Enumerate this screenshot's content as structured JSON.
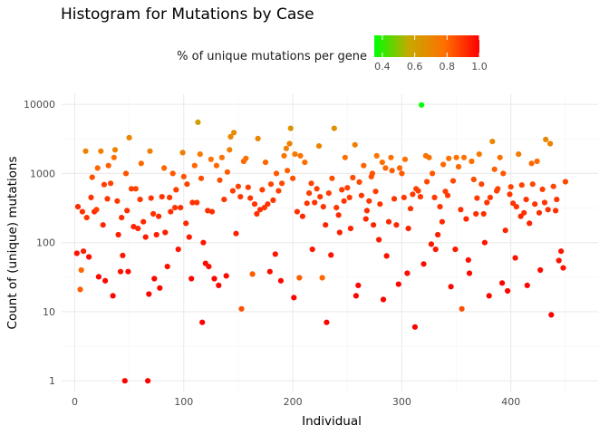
{
  "chart_data": {
    "type": "scatter",
    "title": "Histogram for Mutations by Case",
    "xlabel": "Individual",
    "ylabel": "Count of (unique) mutations",
    "xlim": [
      -12,
      480
    ],
    "x_ticks": [
      0,
      100,
      200,
      300,
      400
    ],
    "y_scale": "log10",
    "ylim": [
      0.7,
      14000
    ],
    "y_ticks": [
      1,
      10,
      100,
      1000,
      10000
    ],
    "grid": true,
    "legend": {
      "title": "% of unique mutations per gene",
      "placement": "top",
      "range": [
        0.35,
        1.0
      ],
      "ticks": [
        "0.4",
        "0.6",
        "0.8",
        "1.0"
      ],
      "colors": [
        "#00ff00",
        "#c8a800",
        "#ff7000",
        "#ff0000"
      ]
    },
    "points": [
      [
        2,
        70,
        0.97
      ],
      [
        3,
        330,
        0.92
      ],
      [
        5,
        21,
        0.82
      ],
      [
        6,
        40,
        0.8
      ],
      [
        7,
        280,
        0.9
      ],
      [
        8,
        75,
        0.95
      ],
      [
        10,
        2100,
        0.72
      ],
      [
        11,
        230,
        0.9
      ],
      [
        13,
        62,
        0.98
      ],
      [
        15,
        450,
        0.9
      ],
      [
        16,
        880,
        0.85
      ],
      [
        18,
        280,
        0.92
      ],
      [
        20,
        300,
        0.88
      ],
      [
        21,
        1200,
        0.8
      ],
      [
        22,
        32,
        0.99
      ],
      [
        24,
        2100,
        0.72
      ],
      [
        26,
        180,
        0.93
      ],
      [
        27,
        690,
        0.88
      ],
      [
        28,
        28,
        0.99
      ],
      [
        30,
        430,
        0.9
      ],
      [
        31,
        1300,
        0.82
      ],
      [
        33,
        720,
        0.87
      ],
      [
        35,
        17,
        0.99
      ],
      [
        36,
        1700,
        0.78
      ],
      [
        37,
        2200,
        0.72
      ],
      [
        39,
        400,
        0.9
      ],
      [
        40,
        130,
        0.94
      ],
      [
        42,
        38,
        0.97
      ],
      [
        43,
        230,
        0.92
      ],
      [
        44,
        65,
        0.96
      ],
      [
        46,
        1,
        1.0
      ],
      [
        47,
        1000,
        0.84
      ],
      [
        48,
        290,
        0.91
      ],
      [
        49,
        38,
        0.98
      ],
      [
        50,
        3300,
        0.7
      ],
      [
        52,
        600,
        0.88
      ],
      [
        54,
        170,
        0.93
      ],
      [
        56,
        600,
        0.87
      ],
      [
        58,
        160,
        0.93
      ],
      [
        60,
        420,
        0.9
      ],
      [
        61,
        1400,
        0.8
      ],
      [
        63,
        200,
        0.92
      ],
      [
        65,
        120,
        0.95
      ],
      [
        67,
        1,
        1.0
      ],
      [
        68,
        18,
        0.99
      ],
      [
        69,
        2100,
        0.72
      ],
      [
        70,
        440,
        0.9
      ],
      [
        72,
        260,
        0.91
      ],
      [
        73,
        30,
        0.99
      ],
      [
        75,
        130,
        0.94
      ],
      [
        77,
        240,
        0.92
      ],
      [
        78,
        22,
        0.99
      ],
      [
        80,
        460,
        0.9
      ],
      [
        82,
        1200,
        0.8
      ],
      [
        83,
        140,
        0.94
      ],
      [
        85,
        45,
        0.97
      ],
      [
        87,
        450,
        0.89
      ],
      [
        88,
        280,
        0.91
      ],
      [
        90,
        1000,
        0.83
      ],
      [
        92,
        320,
        0.9
      ],
      [
        93,
        580,
        0.88
      ],
      [
        95,
        80,
        0.96
      ],
      [
        97,
        320,
        0.91
      ],
      [
        99,
        2000,
        0.73
      ],
      [
        100,
        900,
        0.84
      ],
      [
        102,
        190,
        0.92
      ],
      [
        103,
        700,
        0.87
      ],
      [
        105,
        120,
        0.95
      ],
      [
        107,
        30,
        0.99
      ],
      [
        108,
        380,
        0.9
      ],
      [
        110,
        1300,
        0.8
      ],
      [
        112,
        380,
        0.9
      ],
      [
        113,
        5500,
        0.6
      ],
      [
        115,
        1900,
        0.75
      ],
      [
        116,
        850,
        0.85
      ],
      [
        117,
        7,
        1.0
      ],
      [
        118,
        100,
        0.96
      ],
      [
        120,
        50,
        0.98
      ],
      [
        122,
        290,
        0.91
      ],
      [
        123,
        45,
        0.97
      ],
      [
        125,
        1600,
        0.78
      ],
      [
        126,
        280,
        0.91
      ],
      [
        128,
        30,
        0.99
      ],
      [
        130,
        1300,
        0.8
      ],
      [
        132,
        24,
        0.99
      ],
      [
        133,
        800,
        0.85
      ],
      [
        135,
        1700,
        0.78
      ],
      [
        137,
        420,
        0.9
      ],
      [
        139,
        33,
        0.98
      ],
      [
        140,
        1050,
        0.82
      ],
      [
        142,
        2200,
        0.72
      ],
      [
        143,
        3400,
        0.7
      ],
      [
        145,
        560,
        0.88
      ],
      [
        146,
        3900,
        0.68
      ],
      [
        148,
        135,
        0.94
      ],
      [
        150,
        650,
        0.87
      ],
      [
        152,
        460,
        0.89
      ],
      [
        153,
        11,
        0.85
      ],
      [
        155,
        1500,
        0.8
      ],
      [
        157,
        1650,
        0.78
      ],
      [
        159,
        630,
        0.88
      ],
      [
        161,
        440,
        0.9
      ],
      [
        163,
        35,
        0.82
      ],
      [
        165,
        360,
        0.9
      ],
      [
        167,
        260,
        0.91
      ],
      [
        168,
        3200,
        0.7
      ],
      [
        170,
        300,
        0.91
      ],
      [
        172,
        580,
        0.88
      ],
      [
        174,
        320,
        0.9
      ],
      [
        175,
        1450,
        0.8
      ],
      [
        177,
        360,
        0.9
      ],
      [
        179,
        38,
        0.98
      ],
      [
        180,
        700,
        0.87
      ],
      [
        182,
        410,
        0.9
      ],
      [
        184,
        68,
        0.96
      ],
      [
        185,
        1000,
        0.83
      ],
      [
        187,
        560,
        0.88
      ],
      [
        189,
        28,
        0.99
      ],
      [
        190,
        720,
        0.86
      ],
      [
        192,
        1800,
        0.76
      ],
      [
        194,
        2300,
        0.72
      ],
      [
        195,
        1100,
        0.82
      ],
      [
        197,
        2700,
        0.72
      ],
      [
        198,
        4500,
        0.65
      ],
      [
        200,
        850,
        0.85
      ],
      [
        201,
        16,
        0.99
      ],
      [
        202,
        1900,
        0.75
      ],
      [
        204,
        280,
        0.91
      ],
      [
        206,
        31,
        0.82
      ],
      [
        207,
        1800,
        0.77
      ],
      [
        209,
        240,
        0.92
      ],
      [
        211,
        1450,
        0.79
      ],
      [
        213,
        370,
        0.9
      ],
      [
        215,
        520,
        0.88
      ],
      [
        217,
        720,
        0.87
      ],
      [
        218,
        80,
        0.96
      ],
      [
        220,
        380,
        0.9
      ],
      [
        222,
        600,
        0.88
      ],
      [
        224,
        2500,
        0.72
      ],
      [
        225,
        460,
        0.89
      ],
      [
        227,
        31,
        0.8
      ],
      [
        228,
        330,
        0.9
      ],
      [
        230,
        180,
        0.93
      ],
      [
        231,
        7,
        1.0
      ],
      [
        233,
        520,
        0.88
      ],
      [
        235,
        66,
        0.97
      ],
      [
        236,
        850,
        0.85
      ],
      [
        238,
        4500,
        0.65
      ],
      [
        240,
        320,
        0.9
      ],
      [
        242,
        250,
        0.92
      ],
      [
        243,
        140,
        0.94
      ],
      [
        245,
        580,
        0.88
      ],
      [
        247,
        400,
        0.9
      ],
      [
        248,
        1700,
        0.78
      ],
      [
        250,
        620,
        0.87
      ],
      [
        252,
        450,
        0.89
      ],
      [
        253,
        160,
        0.93
      ],
      [
        255,
        870,
        0.85
      ],
      [
        257,
        2600,
        0.72
      ],
      [
        258,
        17,
        0.99
      ],
      [
        260,
        24,
        0.99
      ],
      [
        261,
        750,
        0.86
      ],
      [
        263,
        480,
        0.89
      ],
      [
        265,
        1300,
        0.81
      ],
      [
        267,
        220,
        0.92
      ],
      [
        268,
        290,
        0.91
      ],
      [
        270,
        400,
        0.9
      ],
      [
        272,
        900,
        0.84
      ],
      [
        273,
        1000,
        0.84
      ],
      [
        274,
        180,
        0.93
      ],
      [
        276,
        550,
        0.88
      ],
      [
        277,
        1800,
        0.77
      ],
      [
        279,
        110,
        0.95
      ],
      [
        280,
        360,
        0.9
      ],
      [
        282,
        1450,
        0.79
      ],
      [
        283,
        15,
        1.0
      ],
      [
        285,
        1200,
        0.8
      ],
      [
        286,
        64,
        0.97
      ],
      [
        288,
        200,
        0.92
      ],
      [
        290,
        1700,
        0.78
      ],
      [
        291,
        1100,
        0.82
      ],
      [
        293,
        430,
        0.9
      ],
      [
        295,
        180,
        0.93
      ],
      [
        297,
        25,
        0.99
      ],
      [
        298,
        1200,
        0.8
      ],
      [
        300,
        1000,
        0.83
      ],
      [
        302,
        450,
        0.89
      ],
      [
        303,
        1600,
        0.78
      ],
      [
        305,
        36,
        0.98
      ],
      [
        306,
        160,
        0.93
      ],
      [
        308,
        310,
        0.9
      ],
      [
        310,
        500,
        0.89
      ],
      [
        312,
        6,
        1.0
      ],
      [
        313,
        600,
        0.87
      ],
      [
        315,
        560,
        0.88
      ],
      [
        317,
        460,
        0.89
      ],
      [
        318,
        9800,
        0.35
      ],
      [
        320,
        49,
        0.98
      ],
      [
        322,
        1800,
        0.77
      ],
      [
        323,
        760,
        0.86
      ],
      [
        325,
        1700,
        0.78
      ],
      [
        327,
        95,
        0.96
      ],
      [
        328,
        1000,
        0.83
      ],
      [
        330,
        450,
        0.89
      ],
      [
        331,
        80,
        0.96
      ],
      [
        333,
        130,
        0.94
      ],
      [
        335,
        330,
        0.9
      ],
      [
        337,
        200,
        0.92
      ],
      [
        338,
        1350,
        0.8
      ],
      [
        340,
        550,
        0.88
      ],
      [
        342,
        480,
        0.89
      ],
      [
        343,
        1650,
        0.78
      ],
      [
        345,
        23,
        0.99
      ],
      [
        347,
        780,
        0.86
      ],
      [
        349,
        80,
        0.96
      ],
      [
        350,
        1700,
        0.78
      ],
      [
        352,
        1250,
        0.8
      ],
      [
        354,
        300,
        0.91
      ],
      [
        355,
        11,
        0.85
      ],
      [
        357,
        1700,
        0.78
      ],
      [
        359,
        220,
        0.92
      ],
      [
        361,
        56,
        0.97
      ],
      [
        362,
        36,
        0.98
      ],
      [
        364,
        1500,
        0.79
      ],
      [
        366,
        820,
        0.85
      ],
      [
        368,
        260,
        0.91
      ],
      [
        369,
        440,
        0.89
      ],
      [
        371,
        1900,
        0.75
      ],
      [
        373,
        700,
        0.87
      ],
      [
        375,
        260,
        0.91
      ],
      [
        376,
        100,
        0.96
      ],
      [
        378,
        380,
        0.9
      ],
      [
        380,
        17,
        0.99
      ],
      [
        381,
        450,
        0.89
      ],
      [
        383,
        2900,
        0.7
      ],
      [
        385,
        1150,
        0.81
      ],
      [
        387,
        560,
        0.88
      ],
      [
        388,
        600,
        0.87
      ],
      [
        390,
        1700,
        0.78
      ],
      [
        392,
        26,
        0.99
      ],
      [
        393,
        1000,
        0.83
      ],
      [
        395,
        150,
        0.93
      ],
      [
        397,
        20,
        0.99
      ],
      [
        399,
        500,
        0.89
      ],
      [
        400,
        640,
        0.87
      ],
      [
        402,
        370,
        0.9
      ],
      [
        404,
        60,
        0.97
      ],
      [
        405,
        330,
        0.9
      ],
      [
        407,
        1900,
        0.75
      ],
      [
        409,
        240,
        0.92
      ],
      [
        410,
        680,
        0.87
      ],
      [
        412,
        270,
        0.91
      ],
      [
        414,
        420,
        0.9
      ],
      [
        415,
        24,
        0.99
      ],
      [
        417,
        190,
        0.93
      ],
      [
        419,
        1400,
        0.8
      ],
      [
        420,
        700,
        0.86
      ],
      [
        422,
        360,
        0.9
      ],
      [
        424,
        1500,
        0.79
      ],
      [
        426,
        270,
        0.91
      ],
      [
        427,
        40,
        0.98
      ],
      [
        429,
        590,
        0.88
      ],
      [
        431,
        380,
        0.9
      ],
      [
        432,
        3100,
        0.7
      ],
      [
        434,
        300,
        0.91
      ],
      [
        436,
        2700,
        0.72
      ],
      [
        437,
        9,
        1.0
      ],
      [
        439,
        650,
        0.87
      ],
      [
        441,
        290,
        0.91
      ],
      [
        442,
        420,
        0.9
      ],
      [
        444,
        55,
        0.97
      ],
      [
        446,
        75,
        0.96
      ],
      [
        448,
        43,
        0.97
      ],
      [
        450,
        760,
        0.86
      ]
    ]
  }
}
